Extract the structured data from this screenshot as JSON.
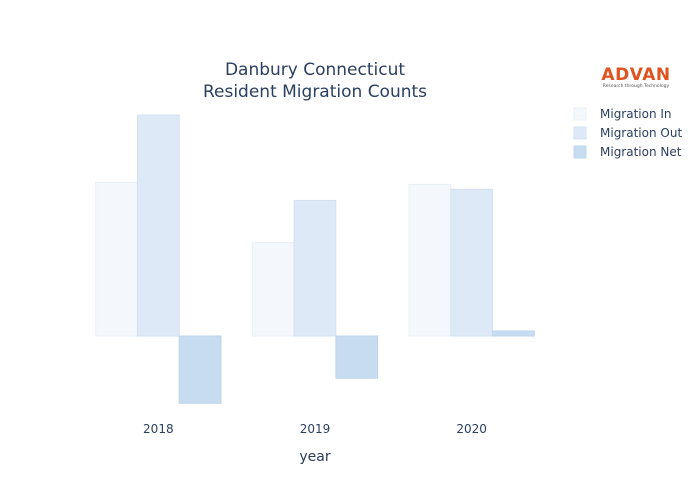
{
  "chart_data": {
    "type": "bar",
    "title_lines": [
      "Danbury Connecticut",
      "Resident Migration Counts"
    ],
    "xlabel": "year",
    "ylabel": "",
    "categories": [
      "2018",
      "2019",
      "2020"
    ],
    "series": [
      {
        "name": "Migration In",
        "values": [
          1530,
          930,
          1510
        ],
        "color": "#f4f8fc",
        "stroke": "#e8f0f8"
      },
      {
        "name": "Migration Out",
        "values": [
          2200,
          1350,
          1460
        ],
        "color": "#dde9f6",
        "stroke": "#d2e2f3"
      },
      {
        "name": "Migration Net",
        "values": [
          -670,
          -420,
          50
        ],
        "color": "#c7dcf0",
        "stroke": "#bcd5ee"
      }
    ],
    "ylim": [
      -750,
      2300
    ],
    "legend_position": "top-right",
    "grid": false
  },
  "logo": {
    "text": "ADVAN",
    "tagline": "Research through Technology"
  }
}
